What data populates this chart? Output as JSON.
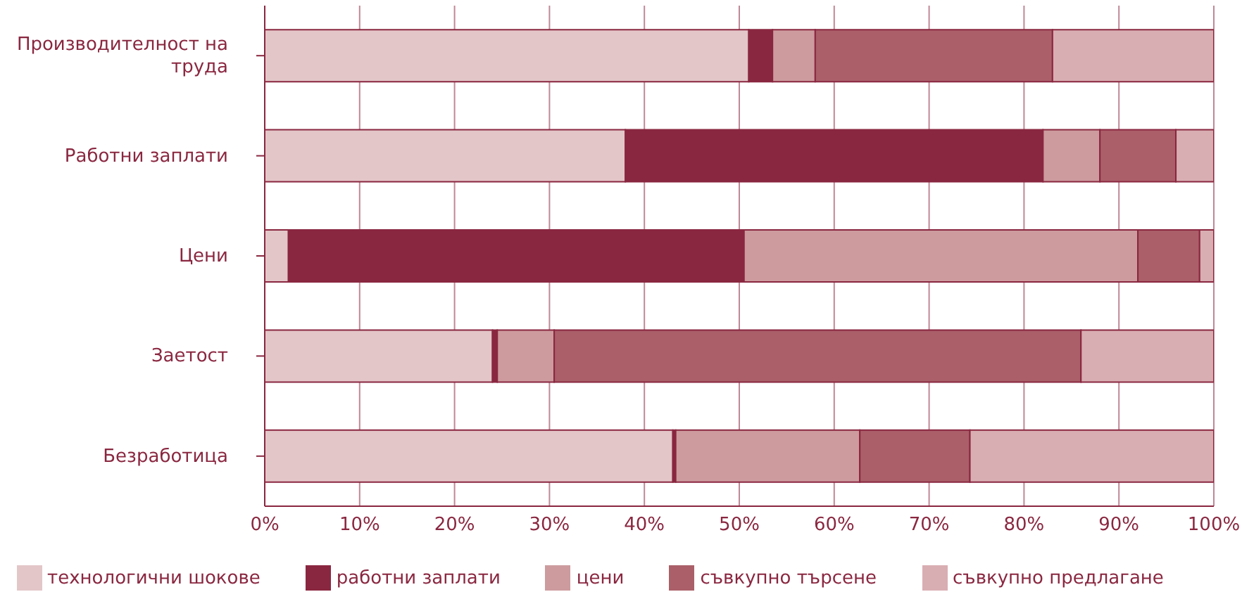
{
  "chart_data": {
    "type": "bar",
    "orientation": "horizontal",
    "stacked": true,
    "categories": [
      "Производителност на труда",
      "Работни заплати",
      "Цени",
      "Заетост",
      "Безработица"
    ],
    "series": [
      {
        "name": "технологични шокове",
        "color": "#e3c6c8",
        "values": [
          51,
          38,
          2.5,
          24,
          43
        ]
      },
      {
        "name": "работни заплати",
        "color": "#8a2740",
        "values": [
          2.5,
          44,
          48,
          0.5,
          0.3
        ]
      },
      {
        "name": "цени",
        "color": "#cd9b9e",
        "values": [
          4.5,
          6,
          41.5,
          6,
          19.4
        ]
      },
      {
        "name": "съвкупно търсене",
        "color": "#aa5f69",
        "values": [
          25,
          8,
          6.5,
          55.5,
          11.6
        ]
      },
      {
        "name": "съвкупно предлагане",
        "color": "#d8aeb2",
        "values": [
          17,
          4,
          1.5,
          14,
          25.7
        ]
      }
    ],
    "xlim": [
      0,
      100
    ],
    "xticks": [
      {
        "value": 0,
        "label": "0%"
      },
      {
        "value": 10,
        "label": "10%"
      },
      {
        "value": 20,
        "label": "20%"
      },
      {
        "value": 30,
        "label": "30%"
      },
      {
        "value": 40,
        "label": "40%"
      },
      {
        "value": 50,
        "label": "50%"
      },
      {
        "value": 60,
        "label": "60%"
      },
      {
        "value": 70,
        "label": "70%"
      },
      {
        "value": 80,
        "label": "80%"
      },
      {
        "value": 90,
        "label": "90%"
      },
      {
        "value": 100,
        "label": "100%"
      }
    ],
    "grid": "x",
    "legend": "bottom"
  }
}
